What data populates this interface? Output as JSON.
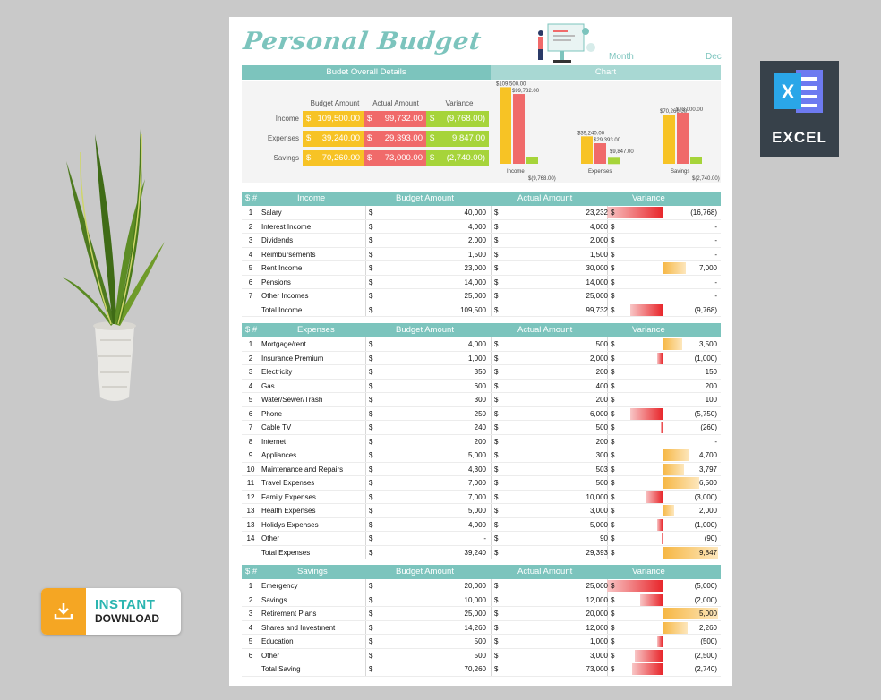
{
  "app": {
    "title": "Personal Budget",
    "month_label": "Month",
    "month_value": "Dec"
  },
  "headers": {
    "overall": "Budet Overall Details",
    "chart": "Chart"
  },
  "summary": {
    "columns": [
      "Budget Amount",
      "Actual Amount",
      "Variance"
    ],
    "rows": [
      {
        "label": "Income",
        "budget": "109,500.00",
        "actual": "99,732.00",
        "variance": "(9,768.00)"
      },
      {
        "label": "Expenses",
        "budget": "39,240.00",
        "actual": "29,393.00",
        "variance": "9,847.00"
      },
      {
        "label": "Savings",
        "budget": "70,260.00",
        "actual": "73,000.00",
        "variance": "(2,740.00)"
      }
    ],
    "currency": "$"
  },
  "chart_data": {
    "type": "bar",
    "categories": [
      "Income",
      "Expenses",
      "Savings"
    ],
    "series": [
      {
        "values": [
          109500,
          39240,
          70260
        ],
        "labels": [
          "$109,500.00",
          "$39,240.00",
          "$70,260.00"
        ],
        "color": "#f7c325"
      },
      {
        "values": [
          99732,
          29393,
          73000
        ],
        "labels": [
          "$99,732.00",
          "$29,393.00",
          "$73,000.00"
        ],
        "color": "#f06a6a"
      },
      {
        "values": [
          -9768,
          9847,
          -2740
        ],
        "labels": [
          "$(9,768.00)",
          "$9,847.00",
          "$(2,740.00)"
        ],
        "color": "#a6d43a"
      }
    ]
  },
  "sections": [
    {
      "key": "income",
      "sym": "$ #",
      "title": "Income",
      "budget_h": "Budget Amount",
      "actual_h": "Actual Amount",
      "var_h": "Variance",
      "rows": [
        {
          "n": "1",
          "name": "Salary",
          "b": "40,000",
          "a": "23,232",
          "v": "(16,768)",
          "val": -16768
        },
        {
          "n": "2",
          "name": "Interest Income",
          "b": "4,000",
          "a": "4,000",
          "v": "-",
          "val": 0
        },
        {
          "n": "3",
          "name": "Dividends",
          "b": "2,000",
          "a": "2,000",
          "v": "-",
          "val": 0
        },
        {
          "n": "4",
          "name": "Reimbursements",
          "b": "1,500",
          "a": "1,500",
          "v": "-",
          "val": 0
        },
        {
          "n": "5",
          "name": "Rent Income",
          "b": "23,000",
          "a": "30,000",
          "v": "7,000",
          "val": 7000
        },
        {
          "n": "6",
          "name": "Pensions",
          "b": "14,000",
          "a": "14,000",
          "v": "-",
          "val": 0
        },
        {
          "n": "7",
          "name": "Other Incomes",
          "b": "25,000",
          "a": "25,000",
          "v": "-",
          "val": 0
        },
        {
          "n": "",
          "name": "Total Income",
          "b": "109,500",
          "a": "99,732",
          "v": "(9,768)",
          "val": -9768
        }
      ]
    },
    {
      "key": "expenses",
      "sym": "$ #",
      "title": "Expenses",
      "budget_h": "Budget Amount",
      "actual_h": "Actual Amount",
      "var_h": "Variance",
      "rows": [
        {
          "n": "1",
          "name": "Mortgage/rent",
          "b": "4,000",
          "a": "500",
          "v": "3,500",
          "val": 3500
        },
        {
          "n": "2",
          "name": "Insurance Premium",
          "b": "1,000",
          "a": "2,000",
          "v": "(1,000)",
          "val": -1000
        },
        {
          "n": "3",
          "name": "Electricity",
          "b": "350",
          "a": "200",
          "v": "150",
          "val": 150
        },
        {
          "n": "4",
          "name": "Gas",
          "b": "600",
          "a": "400",
          "v": "200",
          "val": 200
        },
        {
          "n": "5",
          "name": "Water/Sewer/Trash",
          "b": "300",
          "a": "200",
          "v": "100",
          "val": 100
        },
        {
          "n": "6",
          "name": "Phone",
          "b": "250",
          "a": "6,000",
          "v": "(5,750)",
          "val": -5750
        },
        {
          "n": "7",
          "name": "Cable TV",
          "b": "240",
          "a": "500",
          "v": "(260)",
          "val": -260
        },
        {
          "n": "8",
          "name": "Internet",
          "b": "200",
          "a": "200",
          "v": "-",
          "val": 0
        },
        {
          "n": "9",
          "name": "Appliances",
          "b": "5,000",
          "a": "300",
          "v": "4,700",
          "val": 4700
        },
        {
          "n": "10",
          "name": "Maintenance and Repairs",
          "b": "4,300",
          "a": "503",
          "v": "3,797",
          "val": 3797
        },
        {
          "n": "11",
          "name": "Travel Expenses",
          "b": "7,000",
          "a": "500",
          "v": "6,500",
          "val": 6500
        },
        {
          "n": "12",
          "name": "Family Expenses",
          "b": "7,000",
          "a": "10,000",
          "v": "(3,000)",
          "val": -3000
        },
        {
          "n": "13",
          "name": "Health Expenses",
          "b": "5,000",
          "a": "3,000",
          "v": "2,000",
          "val": 2000
        },
        {
          "n": "13",
          "name": "Holidys Expenses",
          "b": "4,000",
          "a": "5,000",
          "v": "(1,000)",
          "val": -1000
        },
        {
          "n": "14",
          "name": "Other",
          "b": "-",
          "a": "90",
          "v": "(90)",
          "val": -90
        },
        {
          "n": "",
          "name": "Total Expenses",
          "b": "39,240",
          "a": "29,393",
          "v": "9,847",
          "val": 9847
        }
      ]
    },
    {
      "key": "savings",
      "sym": "$ #",
      "title": "Savings",
      "budget_h": "Budget Amount",
      "actual_h": "Actual Amount",
      "var_h": "Variance",
      "rows": [
        {
          "n": "1",
          "name": "Emergency",
          "b": "20,000",
          "a": "25,000",
          "v": "(5,000)",
          "val": -5000
        },
        {
          "n": "2",
          "name": "Savings",
          "b": "10,000",
          "a": "12,000",
          "v": "(2,000)",
          "val": -2000
        },
        {
          "n": "3",
          "name": "Retirement Plans",
          "b": "25,000",
          "a": "20,000",
          "v": "5,000",
          "val": 5000
        },
        {
          "n": "4",
          "name": "Shares and Investment",
          "b": "14,260",
          "a": "12,000",
          "v": "2,260",
          "val": 2260
        },
        {
          "n": "5",
          "name": "Education",
          "b": "500",
          "a": "1,000",
          "v": "(500)",
          "val": -500
        },
        {
          "n": "6",
          "name": "Other",
          "b": "500",
          "a": "3,000",
          "v": "(2,500)",
          "val": -2500
        },
        {
          "n": "",
          "name": "Total Saving",
          "b": "70,260",
          "a": "73,000",
          "v": "(2,740)",
          "val": -2740
        }
      ]
    }
  ],
  "badges": {
    "excel": "EXCEL",
    "instant_1": "INSTANT",
    "instant_2": "DOWNLOAD"
  },
  "colors": {
    "teal": "#7cc4bd",
    "budget": "#f7c325",
    "actual": "#f06a6a",
    "variance": "#a6d43a",
    "excel_bg": "#37414a"
  }
}
